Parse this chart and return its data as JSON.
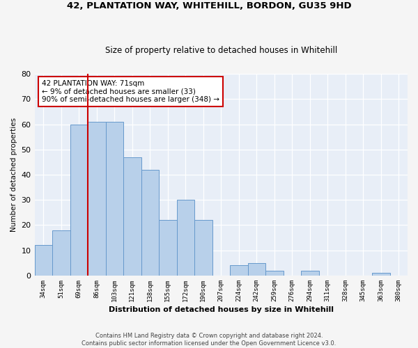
{
  "title": "42, PLANTATION WAY, WHITEHILL, BORDON, GU35 9HD",
  "subtitle": "Size of property relative to detached houses in Whitehill",
  "xlabel": "Distribution of detached houses by size in Whitehill",
  "ylabel": "Number of detached properties",
  "categories": [
    "34sqm",
    "51sqm",
    "69sqm",
    "86sqm",
    "103sqm",
    "121sqm",
    "138sqm",
    "155sqm",
    "172sqm",
    "190sqm",
    "207sqm",
    "224sqm",
    "242sqm",
    "259sqm",
    "276sqm",
    "294sqm",
    "311sqm",
    "328sqm",
    "345sqm",
    "363sqm",
    "380sqm"
  ],
  "values": [
    12,
    18,
    60,
    61,
    61,
    47,
    42,
    22,
    30,
    22,
    0,
    4,
    5,
    2,
    0,
    2,
    0,
    0,
    0,
    1,
    0
  ],
  "bar_color": "#b8d0ea",
  "bar_edge_color": "#6699cc",
  "bg_color": "#e8eef7",
  "grid_color": "#ffffff",
  "vline_x": 2.5,
  "vline_color": "#cc0000",
  "annotation_text": "42 PLANTATION WAY: 71sqm\n← 9% of detached houses are smaller (33)\n90% of semi-detached houses are larger (348) →",
  "annotation_box_color": "#ffffff",
  "annotation_box_edge_color": "#cc0000",
  "ylim": [
    0,
    80
  ],
  "yticks": [
    0,
    10,
    20,
    30,
    40,
    50,
    60,
    70,
    80
  ],
  "footer1": "Contains HM Land Registry data © Crown copyright and database right 2024.",
  "footer2": "Contains public sector information licensed under the Open Government Licence v3.0."
}
